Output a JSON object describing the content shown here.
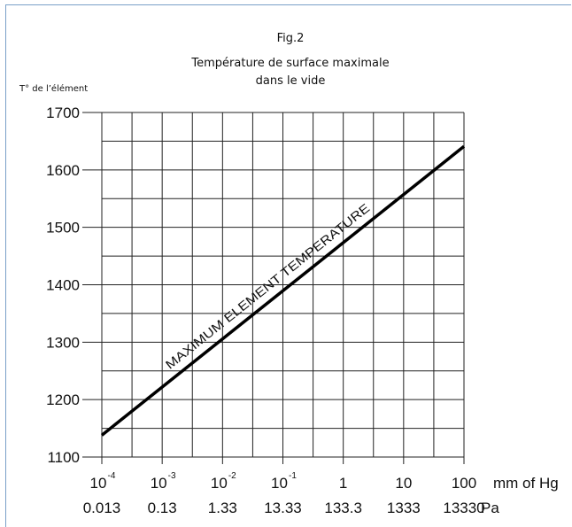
{
  "chart_data": {
    "type": "line",
    "title_line1": "Fig.2",
    "title_line2": "Température de surface maximale",
    "title_line3": "dans le vide",
    "ylabel": "T° de l’élément",
    "ylim": [
      1100,
      1700
    ],
    "yticks": [
      "1700",
      "1600",
      "1500",
      "1400",
      "1300",
      "1200",
      "1100"
    ],
    "y_grid_step": 50,
    "x_axis_scale": "log",
    "xlim_exponent": [
      -4,
      2
    ],
    "x_ticks": [
      {
        "base": "10",
        "exp": "-4",
        "pa": "0.013"
      },
      {
        "base": "10",
        "exp": "-3",
        "pa": "0.13"
      },
      {
        "base": "10",
        "exp": "-2",
        "pa": "1.33"
      },
      {
        "base": "10",
        "exp": "-1",
        "pa": "13.33"
      },
      {
        "base": "1",
        "exp": "",
        "pa": "133.3"
      },
      {
        "base": "10",
        "exp": "",
        "pa": "1333"
      },
      {
        "base": "100",
        "exp": "",
        "pa": "13330"
      }
    ],
    "x_unit_hg": "mm of Hg",
    "x_unit_pa": "Pa",
    "grid": true,
    "series": [
      {
        "x": [
          0.0001,
          100
        ],
        "y": [
          1138,
          1641
        ]
      }
    ],
    "annotation": "MAXIMUM ELEMENT TEMPERATURE"
  }
}
